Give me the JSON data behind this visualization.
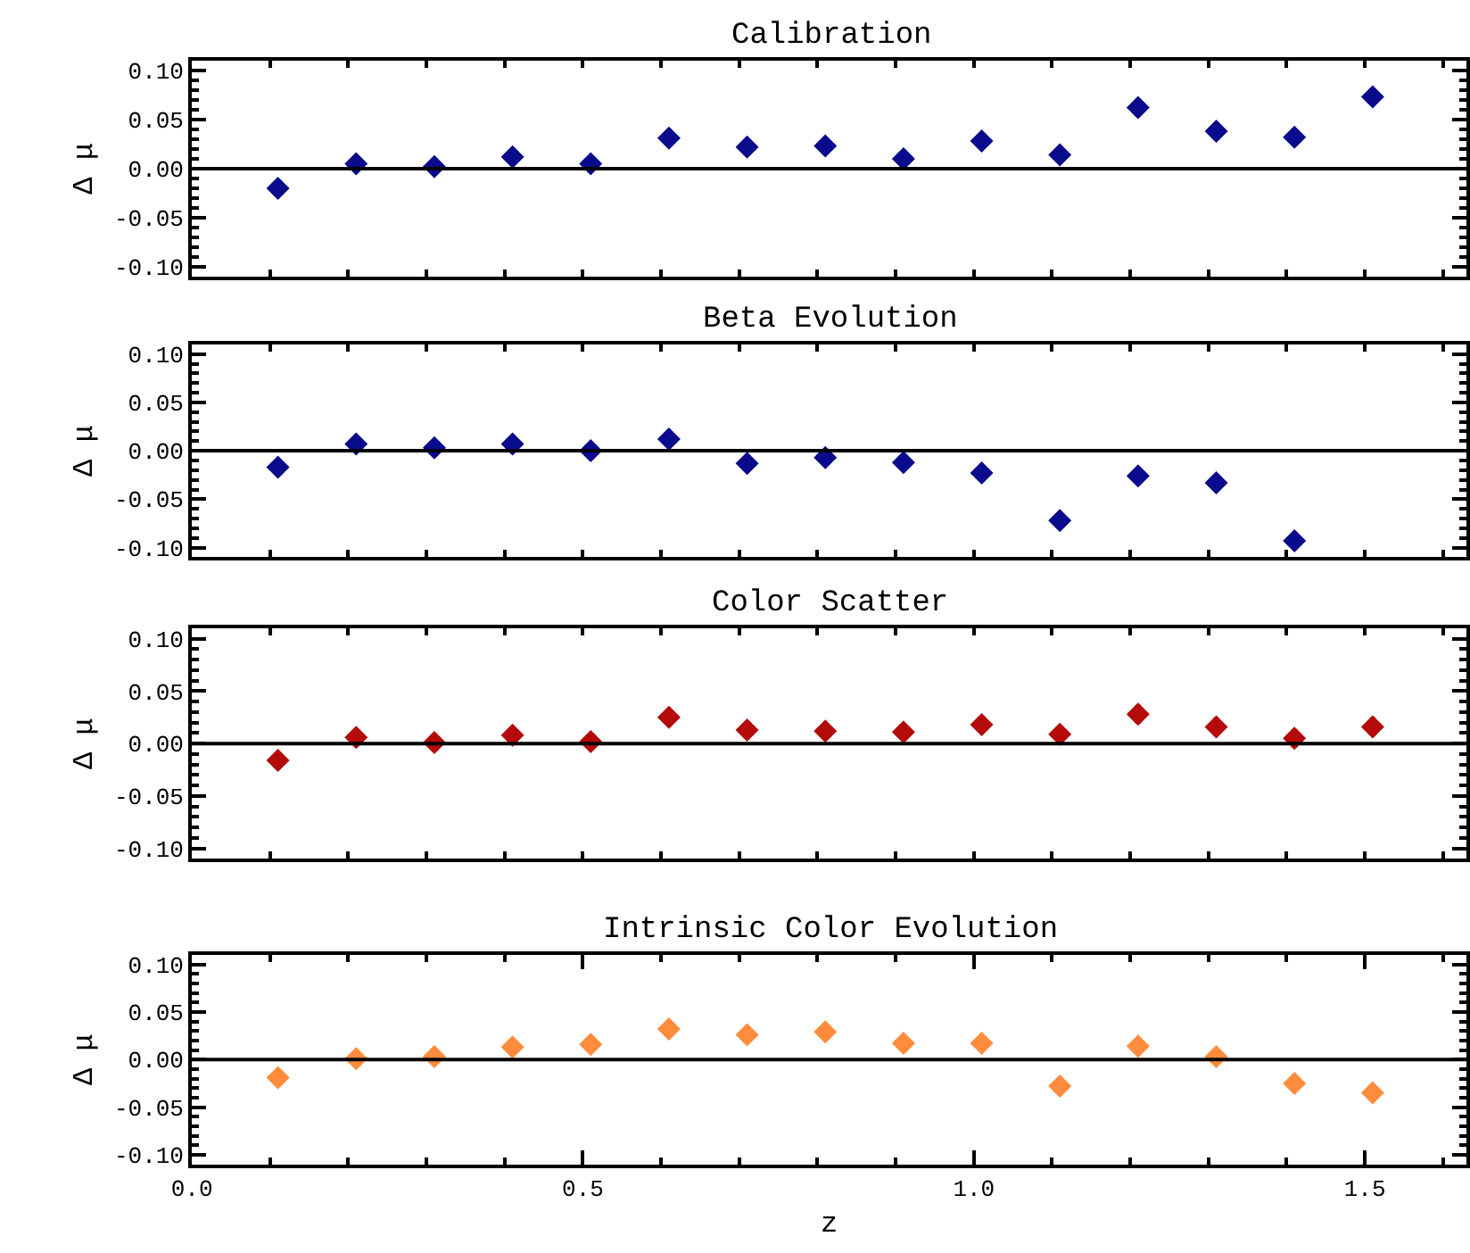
{
  "chart_data": [
    {
      "type": "scatter",
      "title": "Calibration",
      "ylabel": "Δ μ",
      "x": [
        0.11,
        0.21,
        0.31,
        0.41,
        0.51,
        0.61,
        0.71,
        0.81,
        0.91,
        1.01,
        1.11,
        1.21,
        1.31,
        1.41,
        1.51
      ],
      "xlim": [
        0,
        1.63
      ],
      "xticks": [
        {
          "value": 0,
          "label": null
        },
        {
          "value": 0.5,
          "label": null
        },
        {
          "value": 1,
          "label": null
        },
        {
          "value": 1.5,
          "label": null
        }
      ],
      "ylim": [
        -0.11,
        0.11
      ],
      "yticks": [
        {
          "value": -0.1,
          "label": "-0.10"
        },
        {
          "value": -0.05,
          "label": "-0.05"
        },
        {
          "value": 0,
          "label": "0.00"
        },
        {
          "value": 0.05,
          "label": "0.05"
        },
        {
          "value": 0.1,
          "label": "0.10"
        }
      ],
      "tick_labels": "y",
      "marker": "diamond",
      "series": [
        {
          "color": "#0a0a8c",
          "values": [
            -0.02,
            0.005,
            0.002,
            0.012,
            0.005,
            0.031,
            0.022,
            0.023,
            0.01,
            0.028,
            0.014,
            0.062,
            0.038,
            0.032,
            0.073
          ],
          "errors": [
            0.004,
            0.004,
            0.004,
            0.005,
            0.004,
            0.005,
            0.005,
            0.006,
            0.007,
            0.008,
            0.008,
            0.009,
            0.009,
            0.009,
            0.009
          ]
        }
      ],
      "ref_lines": [
        {
          "axis": "y",
          "value": 0,
          "color": "#000000"
        }
      ]
    },
    {
      "type": "scatter",
      "title": "Beta Evolution",
      "ylabel": "Δ μ",
      "x": [
        0.11,
        0.21,
        0.31,
        0.41,
        0.51,
        0.61,
        0.71,
        0.81,
        0.91,
        1.01,
        1.11,
        1.21,
        1.31,
        1.41
      ],
      "xlim": [
        0,
        1.63
      ],
      "xticks": [
        {
          "value": 0,
          "label": null
        },
        {
          "value": 0.5,
          "label": null
        },
        {
          "value": 1,
          "label": null
        },
        {
          "value": 1.5,
          "label": null
        }
      ],
      "ylim": [
        -0.11,
        0.11
      ],
      "yticks": [
        {
          "value": -0.1,
          "label": "-0.10"
        },
        {
          "value": -0.05,
          "label": "-0.05"
        },
        {
          "value": 0,
          "label": "0.00"
        },
        {
          "value": 0.05,
          "label": "0.05"
        },
        {
          "value": 0.1,
          "label": "0.10"
        }
      ],
      "tick_labels": "y",
      "marker": "diamond",
      "series": [
        {
          "color": "#0a0a8c",
          "values": [
            -0.017,
            0.007,
            0.003,
            0.007,
            0.0,
            0.012,
            -0.013,
            -0.007,
            -0.012,
            -0.023,
            -0.072,
            -0.026,
            -0.033,
            -0.093
          ],
          "errors": [
            0.004,
            0.004,
            0.004,
            0.005,
            0.004,
            0.005,
            0.005,
            0.006,
            0.007,
            0.008,
            0.008,
            0.009,
            0.009,
            0.009
          ]
        }
      ],
      "ref_lines": [
        {
          "axis": "y",
          "value": 0,
          "color": "#000000"
        }
      ]
    },
    {
      "type": "scatter",
      "title": "Color Scatter",
      "ylabel": "Δ μ",
      "x": [
        0.11,
        0.21,
        0.31,
        0.41,
        0.51,
        0.61,
        0.71,
        0.81,
        0.91,
        1.01,
        1.11,
        1.21,
        1.31,
        1.41,
        1.51
      ],
      "xlim": [
        0,
        1.63
      ],
      "xticks": [
        {
          "value": 0,
          "label": null
        },
        {
          "value": 0.5,
          "label": null
        },
        {
          "value": 1,
          "label": null
        },
        {
          "value": 1.5,
          "label": null
        }
      ],
      "ylim": [
        -0.11,
        0.11
      ],
      "yticks": [
        {
          "value": -0.1,
          "label": "-0.10"
        },
        {
          "value": -0.05,
          "label": "-0.05"
        },
        {
          "value": 0,
          "label": "0.00"
        },
        {
          "value": 0.05,
          "label": "0.05"
        },
        {
          "value": 0.1,
          "label": "0.10"
        }
      ],
      "tick_labels": "y",
      "marker": "diamond",
      "series": [
        {
          "color": "#b40a0a",
          "values": [
            -0.016,
            0.006,
            0.001,
            0.008,
            0.002,
            0.025,
            0.013,
            0.012,
            0.011,
            0.018,
            0.009,
            0.028,
            0.016,
            0.005,
            0.016
          ],
          "errors": [
            0.004,
            0.004,
            0.004,
            0.005,
            0.004,
            0.005,
            0.005,
            0.006,
            0.007,
            0.008,
            0.008,
            0.009,
            0.009,
            0.009,
            0.009
          ]
        }
      ],
      "ref_lines": [
        {
          "axis": "y",
          "value": 0,
          "color": "#000000"
        }
      ]
    },
    {
      "type": "scatter",
      "title": "Intrinsic Color Evolution",
      "xlabel": "z",
      "ylabel": "Δ μ",
      "x": [
        0.11,
        0.21,
        0.31,
        0.41,
        0.51,
        0.61,
        0.71,
        0.81,
        0.91,
        1.01,
        1.11,
        1.21,
        1.31,
        1.41,
        1.51
      ],
      "xlim": [
        0,
        1.63
      ],
      "xticks": [
        {
          "value": 0,
          "label": "0.0"
        },
        {
          "value": 0.5,
          "label": "0.5"
        },
        {
          "value": 1,
          "label": "1.0"
        },
        {
          "value": 1.5,
          "label": "1.5"
        }
      ],
      "ylim": [
        -0.11,
        0.11
      ],
      "yticks": [
        {
          "value": -0.1,
          "label": "-0.10"
        },
        {
          "value": -0.05,
          "label": "-0.05"
        },
        {
          "value": 0,
          "label": "0.00"
        },
        {
          "value": 0.05,
          "label": "0.05"
        },
        {
          "value": 0.1,
          "label": "0.10"
        }
      ],
      "marker": "diamond",
      "series": [
        {
          "color": "#ff8c3c",
          "values": [
            -0.019,
            0.001,
            0.003,
            0.013,
            0.016,
            0.032,
            0.026,
            0.029,
            0.017,
            0.017,
            -0.028,
            0.014,
            0.003,
            -0.025,
            -0.035
          ],
          "errors": [
            0.004,
            0.004,
            0.004,
            0.004,
            0.004,
            0.005,
            0.005,
            0.005,
            0.005,
            0.005,
            0.006,
            0.006,
            0.006,
            0.006,
            0.007
          ]
        }
      ],
      "ref_lines": [
        {
          "axis": "y",
          "value": 0,
          "color": "#000000"
        }
      ]
    }
  ]
}
